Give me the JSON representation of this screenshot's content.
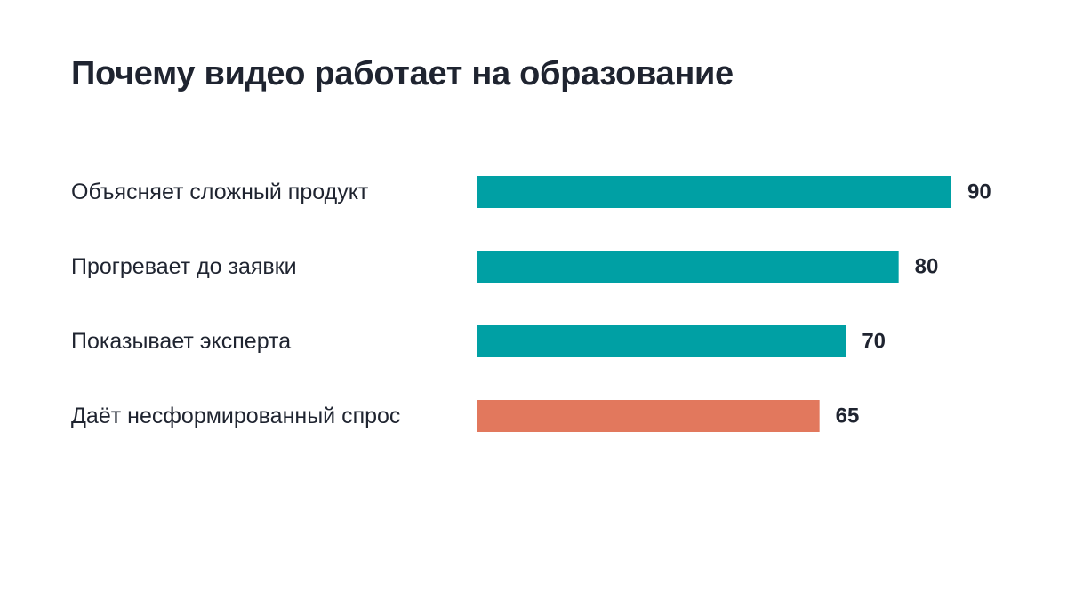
{
  "chart_data": {
    "type": "bar",
    "orientation": "horizontal",
    "title": "Почему видео работает на образование",
    "categories": [
      "Объясняет сложный продукт",
      "Прогревает до заявки",
      "Показывает эксперта",
      "Даёт несформированный спрос"
    ],
    "values": [
      90,
      80,
      70,
      65
    ],
    "value_labels": [
      "90",
      "80",
      "70",
      "65"
    ],
    "bar_colors": [
      "#00a0a4",
      "#00a0a4",
      "#00a0a4",
      "#e2785d"
    ],
    "xlim": [
      0,
      90
    ],
    "grid": false,
    "legend": "none"
  },
  "colors": {
    "primary_bar": "#00a0a4",
    "accent_bar": "#e2785d",
    "text": "#1f2430",
    "background": "#ffffff"
  }
}
